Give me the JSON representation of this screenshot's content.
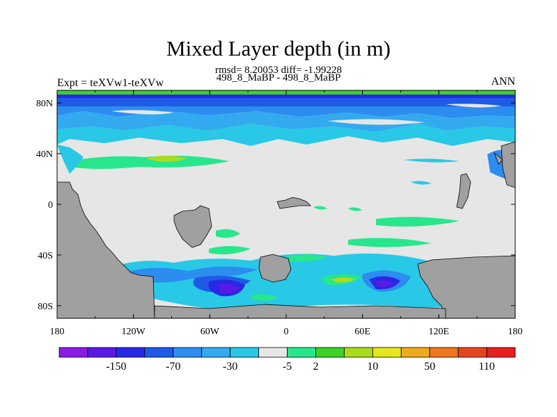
{
  "chart_data": {
    "type": "heatmap",
    "title": "Mixed Layer depth (in m)",
    "stats_line": "rmsd= 8.20053 diff= -1.99228",
    "subtitle": "498_8_MaBP - 498_8_MaBP",
    "left_label": "Expt = teXVw1-teXVw",
    "right_label": "ANN",
    "x_ticks": [
      "180",
      "120W",
      "60W",
      "0",
      "60E",
      "120E",
      "180"
    ],
    "y_ticks": [
      "80N",
      "40N",
      "0",
      "40S",
      "80S"
    ],
    "xlim": [
      -180,
      180
    ],
    "ylim": [
      -90,
      90
    ],
    "colorbar": {
      "colors": [
        "#8a1ae6",
        "#5a1ae6",
        "#2828e6",
        "#1e5ae6",
        "#2d8cf0",
        "#33aaf0",
        "#28c8e6",
        "#e6e6e6",
        "#28e68c",
        "#3cd228",
        "#aadc1e",
        "#e6e61e",
        "#f0aa1e",
        "#f0781e",
        "#e6461e",
        "#e61e1e"
      ],
      "labels": [
        {
          "text": "-150",
          "after": 1
        },
        {
          "text": "-70",
          "after": 3
        },
        {
          "text": "-30",
          "after": 5
        },
        {
          "text": "-5",
          "after": 7
        },
        {
          "text": "2",
          "after": 8
        },
        {
          "text": "10",
          "after": 10
        },
        {
          "text": "50",
          "after": 12
        },
        {
          "text": "110",
          "after": 14
        }
      ]
    },
    "land_color": "#a0a0a0",
    "background_value_color": "#e6e6e6"
  }
}
